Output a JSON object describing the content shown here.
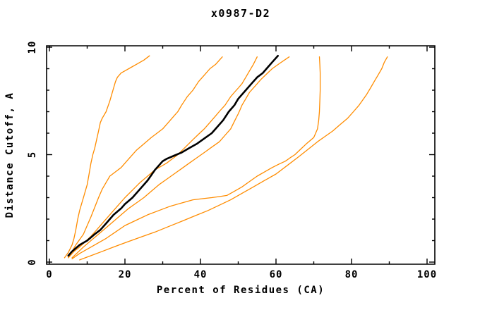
{
  "chart_data": {
    "type": "line",
    "title": "x0987-D2",
    "xlabel": "Percent of Residues (CA)",
    "ylabel": "Distance Cutoff, A",
    "xlim": [
      0,
      100
    ],
    "ylim": [
      0,
      10
    ],
    "x_major_ticks": [
      0,
      20,
      40,
      60,
      80,
      100
    ],
    "x_minor_ticks": [
      10,
      30,
      50,
      70,
      90
    ],
    "y_major_ticks": [
      0,
      5,
      10
    ],
    "y_minor_ticks": [
      1,
      2,
      3,
      4,
      6,
      7,
      8,
      9
    ],
    "grid": false,
    "legend": "none",
    "frame": "full-box-mirrored-inward-ticks",
    "colors": {
      "orange_curves": "#ff8c00",
      "black_curve": "#000000",
      "axis": "#000000",
      "background": "#ffffff"
    },
    "series": [
      {
        "name": "orange-1",
        "color": "#ff8c00",
        "line_width": 1.3,
        "points": [
          [
            4,
            0.2
          ],
          [
            5,
            0.45
          ],
          [
            6,
            0.8
          ],
          [
            6.5,
            1.1
          ],
          [
            7,
            1.5
          ],
          [
            7.5,
            2.0
          ],
          [
            8,
            2.4
          ],
          [
            8.5,
            2.7
          ],
          [
            9,
            3.0
          ],
          [
            9.5,
            3.3
          ],
          [
            10,
            3.6
          ],
          [
            10.5,
            4.1
          ],
          [
            11,
            4.6
          ],
          [
            11.5,
            5.0
          ],
          [
            12,
            5.3
          ],
          [
            12.5,
            5.7
          ],
          [
            13,
            6.1
          ],
          [
            13.5,
            6.5
          ],
          [
            14,
            6.7
          ],
          [
            15,
            7.0
          ],
          [
            16,
            7.5
          ],
          [
            17,
            8.1
          ],
          [
            17.5,
            8.4
          ],
          [
            18,
            8.6
          ],
          [
            19,
            8.8
          ],
          [
            20,
            8.9
          ],
          [
            21.5,
            9.05
          ],
          [
            23,
            9.2
          ],
          [
            25,
            9.4
          ],
          [
            26.5,
            9.6
          ]
        ]
      },
      {
        "name": "orange-2",
        "color": "#ff8c00",
        "line_width": 1.3,
        "points": [
          [
            5,
            0.25
          ],
          [
            6,
            0.5
          ],
          [
            7,
            0.8
          ],
          [
            8,
            1.05
          ],
          [
            9,
            1.3
          ],
          [
            10,
            1.7
          ],
          [
            11,
            2.1
          ],
          [
            12,
            2.55
          ],
          [
            13,
            3.0
          ],
          [
            14,
            3.4
          ],
          [
            15,
            3.7
          ],
          [
            16,
            4.0
          ],
          [
            17.5,
            4.2
          ],
          [
            19,
            4.4
          ],
          [
            21,
            4.8
          ],
          [
            23,
            5.2
          ],
          [
            25,
            5.5
          ],
          [
            27,
            5.8
          ],
          [
            28.5,
            6.0
          ],
          [
            30,
            6.2
          ],
          [
            31.5,
            6.5
          ],
          [
            33,
            6.8
          ],
          [
            34,
            7.0
          ],
          [
            35,
            7.3
          ],
          [
            36.5,
            7.7
          ],
          [
            38,
            8.0
          ],
          [
            39.5,
            8.4
          ],
          [
            41,
            8.7
          ],
          [
            42.5,
            9.0
          ],
          [
            44,
            9.2
          ],
          [
            45.8,
            9.55
          ]
        ]
      },
      {
        "name": "orange-3",
        "color": "#ff8c00",
        "line_width": 1.3,
        "points": [
          [
            5,
            0.2
          ],
          [
            6.5,
            0.5
          ],
          [
            8,
            0.7
          ],
          [
            9.5,
            0.95
          ],
          [
            11,
            1.2
          ],
          [
            12.5,
            1.5
          ],
          [
            14,
            1.8
          ],
          [
            15.5,
            2.1
          ],
          [
            17,
            2.4
          ],
          [
            18.5,
            2.7
          ],
          [
            20,
            3.0
          ],
          [
            22,
            3.35
          ],
          [
            24,
            3.7
          ],
          [
            26,
            4.0
          ],
          [
            28,
            4.3
          ],
          [
            29.5,
            4.45
          ],
          [
            31,
            4.6
          ],
          [
            32.5,
            4.8
          ],
          [
            34,
            5.0
          ],
          [
            36,
            5.35
          ],
          [
            38,
            5.7
          ],
          [
            39.5,
            5.95
          ],
          [
            41,
            6.2
          ],
          [
            42.5,
            6.5
          ],
          [
            44,
            6.8
          ],
          [
            45.2,
            7.05
          ],
          [
            46.5,
            7.3
          ],
          [
            48,
            7.7
          ],
          [
            49,
            7.9
          ],
          [
            50,
            8.1
          ],
          [
            51,
            8.3
          ],
          [
            52,
            8.6
          ],
          [
            53,
            8.9
          ],
          [
            54,
            9.2
          ],
          [
            55,
            9.55
          ]
        ]
      },
      {
        "name": "black-main",
        "color": "#000000",
        "line_width": 2.6,
        "points": [
          [
            5,
            0.3
          ],
          [
            6,
            0.5
          ],
          [
            8,
            0.8
          ],
          [
            10,
            1.0
          ],
          [
            12,
            1.3
          ],
          [
            13.5,
            1.5
          ],
          [
            15,
            1.8
          ],
          [
            17,
            2.2
          ],
          [
            19,
            2.5
          ],
          [
            20,
            2.7
          ],
          [
            22,
            3.0
          ],
          [
            24,
            3.4
          ],
          [
            26,
            3.8
          ],
          [
            28,
            4.3
          ],
          [
            30,
            4.7
          ],
          [
            31,
            4.8
          ],
          [
            33,
            4.95
          ],
          [
            35,
            5.1
          ],
          [
            37,
            5.3
          ],
          [
            39,
            5.5
          ],
          [
            41,
            5.75
          ],
          [
            43,
            6.0
          ],
          [
            44,
            6.2
          ],
          [
            46,
            6.6
          ],
          [
            47.5,
            7.0
          ],
          [
            49,
            7.3
          ],
          [
            50,
            7.6
          ],
          [
            52,
            8.0
          ],
          [
            53.5,
            8.3
          ],
          [
            55,
            8.6
          ],
          [
            56.5,
            8.8
          ],
          [
            58,
            9.1
          ],
          [
            59,
            9.3
          ],
          [
            60.5,
            9.6
          ]
        ]
      },
      {
        "name": "orange-4",
        "color": "#ff8c00",
        "line_width": 1.3,
        "points": [
          [
            6,
            0.2
          ],
          [
            7.5,
            0.45
          ],
          [
            9,
            0.7
          ],
          [
            11,
            1.0
          ],
          [
            13,
            1.3
          ],
          [
            15,
            1.6
          ],
          [
            17,
            1.9
          ],
          [
            19,
            2.2
          ],
          [
            21,
            2.5
          ],
          [
            23,
            2.75
          ],
          [
            25,
            3.0
          ],
          [
            27,
            3.3
          ],
          [
            29,
            3.6
          ],
          [
            31,
            3.85
          ],
          [
            33,
            4.1
          ],
          [
            35,
            4.35
          ],
          [
            37,
            4.6
          ],
          [
            39,
            4.85
          ],
          [
            41,
            5.1
          ],
          [
            43,
            5.35
          ],
          [
            45,
            5.6
          ],
          [
            46.5,
            5.9
          ],
          [
            48,
            6.2
          ],
          [
            49,
            6.55
          ],
          [
            50,
            6.9
          ],
          [
            50.5,
            7.1
          ],
          [
            51,
            7.3
          ],
          [
            52,
            7.6
          ],
          [
            53,
            7.9
          ],
          [
            54.5,
            8.2
          ],
          [
            56,
            8.5
          ],
          [
            57.5,
            8.75
          ],
          [
            59,
            9.0
          ],
          [
            61,
            9.25
          ],
          [
            63.5,
            9.55
          ]
        ]
      },
      {
        "name": "orange-5",
        "color": "#ff8c00",
        "line_width": 1.3,
        "points": [
          [
            6,
            0.15
          ],
          [
            8,
            0.4
          ],
          [
            10,
            0.6
          ],
          [
            12.5,
            0.85
          ],
          [
            15,
            1.1
          ],
          [
            17.5,
            1.4
          ],
          [
            20,
            1.7
          ],
          [
            23,
            1.95
          ],
          [
            26,
            2.2
          ],
          [
            29,
            2.4
          ],
          [
            32,
            2.6
          ],
          [
            35,
            2.75
          ],
          [
            38,
            2.9
          ],
          [
            40.5,
            2.95
          ],
          [
            43,
            3.0
          ],
          [
            45,
            3.05
          ],
          [
            47,
            3.1
          ],
          [
            49,
            3.3
          ],
          [
            51,
            3.5
          ],
          [
            53,
            3.75
          ],
          [
            55,
            4.0
          ],
          [
            57,
            4.2
          ],
          [
            59,
            4.4
          ],
          [
            60.7,
            4.55
          ],
          [
            62.5,
            4.7
          ],
          [
            63.7,
            4.85
          ],
          [
            65,
            5.0
          ],
          [
            66.5,
            5.25
          ],
          [
            68,
            5.5
          ],
          [
            69,
            5.65
          ],
          [
            70,
            5.8
          ],
          [
            70.5,
            6.0
          ],
          [
            71,
            6.2
          ],
          [
            71.3,
            6.6
          ],
          [
            71.5,
            7.0
          ],
          [
            71.6,
            7.5
          ],
          [
            71.7,
            8.0
          ],
          [
            71.7,
            8.4
          ],
          [
            71.7,
            8.8
          ],
          [
            71.6,
            9.2
          ],
          [
            71.5,
            9.55
          ]
        ]
      },
      {
        "name": "orange-6",
        "color": "#ff8c00",
        "line_width": 1.3,
        "points": [
          [
            8,
            0.1
          ],
          [
            11,
            0.3
          ],
          [
            14,
            0.5
          ],
          [
            17,
            0.7
          ],
          [
            20,
            0.9
          ],
          [
            24,
            1.15
          ],
          [
            28,
            1.4
          ],
          [
            31.5,
            1.65
          ],
          [
            35,
            1.9
          ],
          [
            38.5,
            2.15
          ],
          [
            42,
            2.4
          ],
          [
            45,
            2.65
          ],
          [
            48,
            2.9
          ],
          [
            51,
            3.2
          ],
          [
            54,
            3.5
          ],
          [
            57,
            3.8
          ],
          [
            60,
            4.1
          ],
          [
            63,
            4.5
          ],
          [
            66,
            4.9
          ],
          [
            68.5,
            5.25
          ],
          [
            71,
            5.6
          ],
          [
            73,
            5.85
          ],
          [
            75,
            6.1
          ],
          [
            77,
            6.4
          ],
          [
            79,
            6.7
          ],
          [
            80.5,
            7.0
          ],
          [
            82,
            7.3
          ],
          [
            83,
            7.55
          ],
          [
            84,
            7.8
          ],
          [
            85,
            8.1
          ],
          [
            86,
            8.4
          ],
          [
            87,
            8.7
          ],
          [
            88,
            9.0
          ],
          [
            88.7,
            9.3
          ],
          [
            89.5,
            9.55
          ]
        ]
      }
    ]
  }
}
